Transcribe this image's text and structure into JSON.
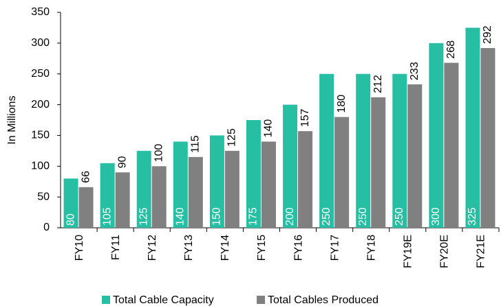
{
  "chart_data": {
    "type": "bar",
    "y_axis_label": "In Millions",
    "categories": [
      "FY10",
      "FY11",
      "FY12",
      "FY13",
      "FY14",
      "FY15",
      "FY16",
      "FY17",
      "FY18",
      "FY19E",
      "FY20E",
      "FY21E"
    ],
    "series": [
      {
        "name": "Total Cable Capacity",
        "color": "#26bfa3",
        "values": [
          80,
          105,
          125,
          140,
          150,
          175,
          200,
          250,
          250,
          250,
          300,
          325
        ]
      },
      {
        "name": "Total Cables Produced",
        "color": "#808080",
        "values": [
          66,
          90,
          100,
          115,
          125,
          140,
          157,
          180,
          212,
          233,
          268,
          292
        ]
      }
    ],
    "ylim": [
      0,
      350
    ],
    "yticks": [
      0,
      50,
      100,
      150,
      200,
      250,
      300,
      350
    ]
  }
}
